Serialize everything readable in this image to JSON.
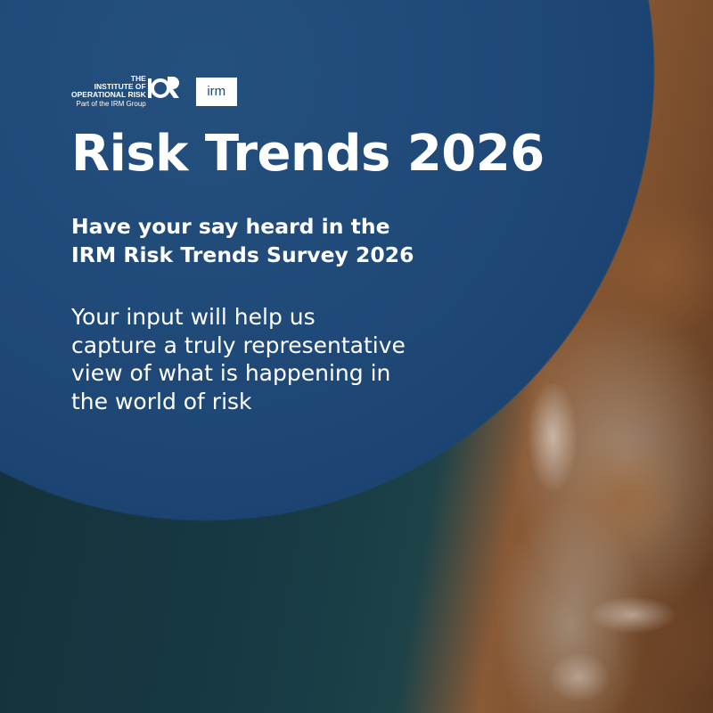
{
  "logos": {
    "iorm_line1": "THE",
    "iorm_line2": "INSTITUTE OF",
    "iorm_line3": "OPERATIONAL RISK",
    "iorm_sub": "Part of the IRM Group",
    "irm": "irm"
  },
  "title": "Risk Trends 2026",
  "subtitle_line1": "Have your say heard in the",
  "subtitle_line2": "IRM Risk Trends Survey 2026",
  "body_line1": "Your input will help us",
  "body_line2": "capture a truly representative",
  "body_line3": "view of what is happening in",
  "body_line4": "the world of risk",
  "colors": {
    "panel": "#1f4a78",
    "text": "#ffffff"
  }
}
